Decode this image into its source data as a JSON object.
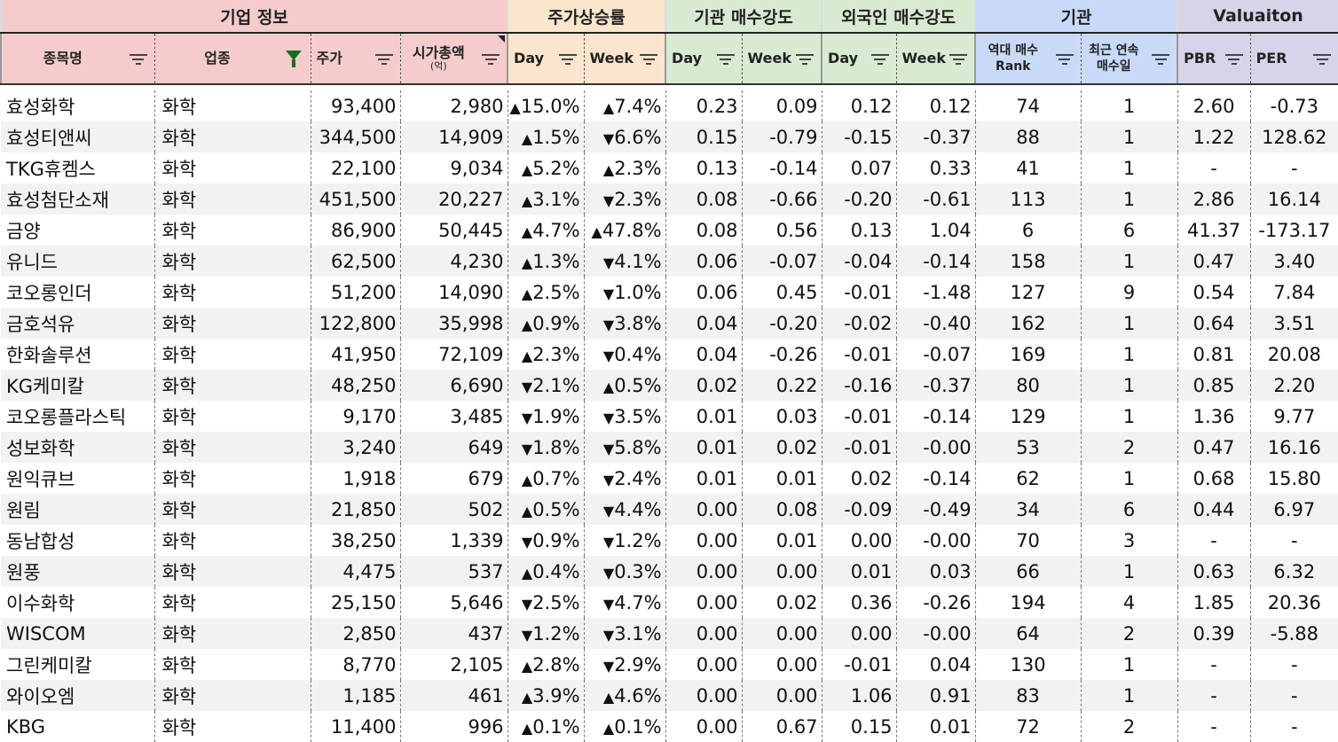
{
  "groups": [
    {
      "label": "기업 정보",
      "color": "#f4cccc"
    },
    {
      "label": "주가상승률",
      "color": "#fce5cd"
    },
    {
      "label": "기관 매수강도",
      "color": "#d9ead3"
    },
    {
      "label": "외국인 매수강도",
      "color": "#d9ead3"
    },
    {
      "label": "기관",
      "color": "#c9daf8"
    },
    {
      "label": "Valuaiton",
      "color": "#d9d2e9"
    }
  ],
  "columns": {
    "name": "종목명",
    "sector": "업종",
    "price": "주가",
    "mcap": "시가총액",
    "mcap_unit": "(억)",
    "ret_day": "Day",
    "ret_week": "Week",
    "inst_day": "Day",
    "inst_week": "Week",
    "for_day": "Day",
    "for_week": "Week",
    "rank_line1": "역대 매수",
    "rank_line2": "Rank",
    "streak_line1": "최근 연속",
    "streak_line2": "매수일",
    "pbr": "PBR",
    "per": "PER"
  },
  "colors": {
    "up": "#e8000b",
    "down": "#1f2fd9"
  },
  "rows": [
    {
      "name": "효성화학",
      "sector": "화학",
      "price": "93,400",
      "mcap": "2,980",
      "d_dir": "up",
      "d": "15.0%",
      "w_dir": "up",
      "w": "7.4%",
      "id": "0.23",
      "iw": "0.09",
      "fd": "0.12",
      "fw": "0.12",
      "rank": "74",
      "streak": "1",
      "pbr": "2.60",
      "per": "-0.73"
    },
    {
      "name": "효성티앤씨",
      "sector": "화학",
      "price": "344,500",
      "mcap": "14,909",
      "d_dir": "up",
      "d": "1.5%",
      "w_dir": "down",
      "w": "6.6%",
      "id": "0.15",
      "iw": "-0.79",
      "fd": "-0.15",
      "fw": "-0.37",
      "rank": "88",
      "streak": "1",
      "pbr": "1.22",
      "per": "128.62"
    },
    {
      "name": "TKG휴켐스",
      "sector": "화학",
      "price": "22,100",
      "mcap": "9,034",
      "d_dir": "up",
      "d": "5.2%",
      "w_dir": "up",
      "w": "2.3%",
      "id": "0.13",
      "iw": "-0.14",
      "fd": "0.07",
      "fw": "0.33",
      "rank": "41",
      "streak": "1",
      "pbr": "-",
      "per": "-"
    },
    {
      "name": "효성첨단소재",
      "sector": "화학",
      "price": "451,500",
      "mcap": "20,227",
      "d_dir": "up",
      "d": "3.1%",
      "w_dir": "down",
      "w": "2.3%",
      "id": "0.08",
      "iw": "-0.66",
      "fd": "-0.20",
      "fw": "-0.61",
      "rank": "113",
      "streak": "1",
      "pbr": "2.86",
      "per": "16.14"
    },
    {
      "name": "금양",
      "sector": "화학",
      "price": "86,900",
      "mcap": "50,445",
      "d_dir": "up",
      "d": "4.7%",
      "w_dir": "up",
      "w": "47.8%",
      "id": "0.08",
      "iw": "0.56",
      "fd": "0.13",
      "fw": "1.04",
      "rank": "6",
      "streak": "6",
      "pbr": "41.37",
      "per": "-173.17"
    },
    {
      "name": "유니드",
      "sector": "화학",
      "price": "62,500",
      "mcap": "4,230",
      "d_dir": "up",
      "d": "1.3%",
      "w_dir": "down",
      "w": "4.1%",
      "id": "0.06",
      "iw": "-0.07",
      "fd": "-0.04",
      "fw": "-0.14",
      "rank": "158",
      "streak": "1",
      "pbr": "0.47",
      "per": "3.40"
    },
    {
      "name": "코오롱인더",
      "sector": "화학",
      "price": "51,200",
      "mcap": "14,090",
      "d_dir": "up",
      "d": "2.5%",
      "w_dir": "down",
      "w": "1.0%",
      "id": "0.06",
      "iw": "0.45",
      "fd": "-0.01",
      "fw": "-1.48",
      "rank": "127",
      "streak": "9",
      "pbr": "0.54",
      "per": "7.84"
    },
    {
      "name": "금호석유",
      "sector": "화학",
      "price": "122,800",
      "mcap": "35,998",
      "d_dir": "up",
      "d": "0.9%",
      "w_dir": "down",
      "w": "3.8%",
      "id": "0.04",
      "iw": "-0.20",
      "fd": "-0.02",
      "fw": "-0.40",
      "rank": "162",
      "streak": "1",
      "pbr": "0.64",
      "per": "3.51"
    },
    {
      "name": "한화솔루션",
      "sector": "화학",
      "price": "41,950",
      "mcap": "72,109",
      "d_dir": "up",
      "d": "2.3%",
      "w_dir": "down",
      "w": "0.4%",
      "id": "0.04",
      "iw": "-0.26",
      "fd": "-0.01",
      "fw": "-0.07",
      "rank": "169",
      "streak": "1",
      "pbr": "0.81",
      "per": "20.08"
    },
    {
      "name": "KG케미칼",
      "sector": "화학",
      "price": "48,250",
      "mcap": "6,690",
      "d_dir": "down",
      "d": "2.1%",
      "w_dir": "up",
      "w": "0.5%",
      "id": "0.02",
      "iw": "0.22",
      "fd": "-0.16",
      "fw": "-0.37",
      "rank": "80",
      "streak": "1",
      "pbr": "0.85",
      "per": "2.20"
    },
    {
      "name": "코오롱플라스틱",
      "sector": "화학",
      "price": "9,170",
      "mcap": "3,485",
      "d_dir": "down",
      "d": "1.9%",
      "w_dir": "down",
      "w": "3.5%",
      "id": "0.01",
      "iw": "0.03",
      "fd": "-0.01",
      "fw": "-0.14",
      "rank": "129",
      "streak": "1",
      "pbr": "1.36",
      "per": "9.77"
    },
    {
      "name": "성보화학",
      "sector": "화학",
      "price": "3,240",
      "mcap": "649",
      "d_dir": "down",
      "d": "1.8%",
      "w_dir": "down",
      "w": "5.8%",
      "id": "0.01",
      "iw": "0.02",
      "fd": "-0.01",
      "fw": "-0.00",
      "rank": "53",
      "streak": "2",
      "pbr": "0.47",
      "per": "16.16"
    },
    {
      "name": "원익큐브",
      "sector": "화학",
      "price": "1,918",
      "mcap": "679",
      "d_dir": "up",
      "d": "0.7%",
      "w_dir": "down",
      "w": "2.4%",
      "id": "0.01",
      "iw": "0.01",
      "fd": "0.02",
      "fw": "-0.14",
      "rank": "62",
      "streak": "1",
      "pbr": "0.68",
      "per": "15.80"
    },
    {
      "name": "원림",
      "sector": "화학",
      "price": "21,850",
      "mcap": "502",
      "d_dir": "up",
      "d": "0.5%",
      "w_dir": "down",
      "w": "4.4%",
      "id": "0.00",
      "iw": "0.08",
      "fd": "-0.09",
      "fw": "-0.49",
      "rank": "34",
      "streak": "6",
      "pbr": "0.44",
      "per": "6.97"
    },
    {
      "name": "동남합성",
      "sector": "화학",
      "price": "38,250",
      "mcap": "1,339",
      "d_dir": "down",
      "d": "0.9%",
      "w_dir": "down",
      "w": "1.2%",
      "id": "0.00",
      "iw": "0.01",
      "fd": "0.00",
      "fw": "-0.00",
      "rank": "70",
      "streak": "3",
      "pbr": "-",
      "per": "-"
    },
    {
      "name": "원풍",
      "sector": "화학",
      "price": "4,475",
      "mcap": "537",
      "d_dir": "up",
      "d": "0.4%",
      "w_dir": "down",
      "w": "0.3%",
      "id": "0.00",
      "iw": "0.00",
      "fd": "0.01",
      "fw": "0.03",
      "rank": "66",
      "streak": "1",
      "pbr": "0.63",
      "per": "6.32"
    },
    {
      "name": "이수화학",
      "sector": "화학",
      "price": "25,150",
      "mcap": "5,646",
      "d_dir": "down",
      "d": "2.5%",
      "w_dir": "down",
      "w": "4.7%",
      "id": "0.00",
      "iw": "0.02",
      "fd": "0.36",
      "fw": "-0.26",
      "rank": "194",
      "streak": "4",
      "pbr": "1.85",
      "per": "20.36"
    },
    {
      "name": "WISCOM",
      "sector": "화학",
      "price": "2,850",
      "mcap": "437",
      "d_dir": "down",
      "d": "1.2%",
      "w_dir": "down",
      "w": "3.1%",
      "id": "0.00",
      "iw": "0.00",
      "fd": "0.00",
      "fw": "-0.00",
      "rank": "64",
      "streak": "2",
      "pbr": "0.39",
      "per": "-5.88"
    },
    {
      "name": "그린케미칼",
      "sector": "화학",
      "price": "8,770",
      "mcap": "2,105",
      "d_dir": "up",
      "d": "2.8%",
      "w_dir": "down",
      "w": "2.9%",
      "id": "0.00",
      "iw": "0.00",
      "fd": "-0.01",
      "fw": "0.04",
      "rank": "130",
      "streak": "1",
      "pbr": "-",
      "per": "-"
    },
    {
      "name": "와이오엠",
      "sector": "화학",
      "price": "1,185",
      "mcap": "461",
      "d_dir": "up",
      "d": "3.9%",
      "w_dir": "up",
      "w": "4.6%",
      "id": "0.00",
      "iw": "0.00",
      "fd": "1.06",
      "fw": "0.91",
      "rank": "83",
      "streak": "1",
      "pbr": "-",
      "per": "-"
    },
    {
      "name": "KBG",
      "sector": "화학",
      "price": "11,400",
      "mcap": "996",
      "d_dir": "up",
      "d": "0.1%",
      "w_dir": "up",
      "w": "0.1%",
      "id": "0.00",
      "iw": "0.67",
      "fd": "0.15",
      "fw": "0.01",
      "rank": "72",
      "streak": "2",
      "pbr": "-",
      "per": "-"
    }
  ]
}
